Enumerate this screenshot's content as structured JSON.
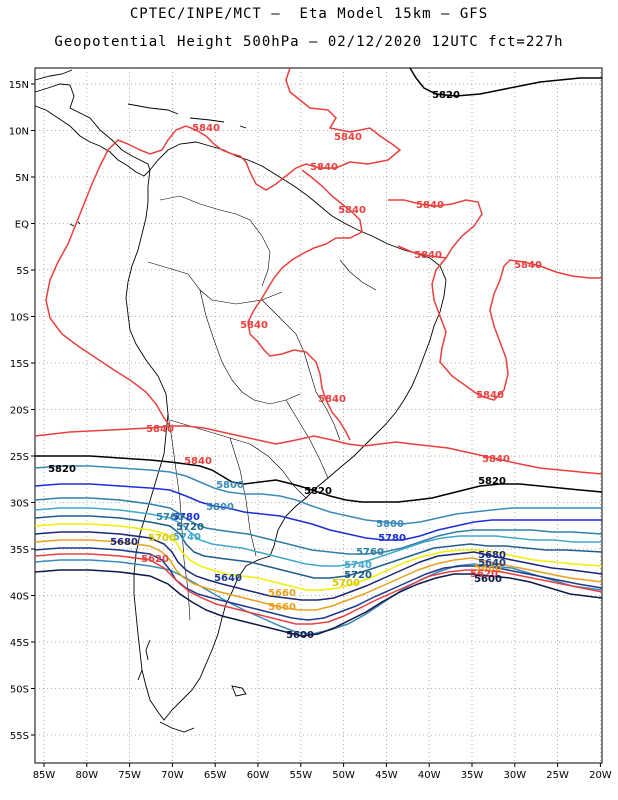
{
  "title_line1": "CPTEC/INPE/MCT –  Eta Model 15km – GFS",
  "title_line2": "Geopotential Height 500hPa – 02/12/2020 12UTC fct=227h",
  "lat_labels": [
    "15N",
    "10N",
    "5N",
    "EQ",
    "5S",
    "10S",
    "15S",
    "20S",
    "25S",
    "30S",
    "35S",
    "40S",
    "45S",
    "50S",
    "55S"
  ],
  "lon_labels": [
    "85W",
    "80W",
    "75W",
    "70W",
    "65W",
    "60W",
    "55W",
    "50W",
    "45W",
    "40W",
    "35W",
    "30W",
    "25W",
    "20W"
  ],
  "contour_levels": [
    {
      "value": 5840,
      "color": "#e8403e"
    },
    {
      "value": 5820,
      "color": "#000000"
    },
    {
      "value": 5800,
      "color": "#3a8ab8"
    },
    {
      "value": 5780,
      "color": "#1a2fd8"
    },
    {
      "value": 5760,
      "color": "#2f7fa8"
    },
    {
      "value": 5740,
      "color": "#40a8c8"
    },
    {
      "value": 5720,
      "color": "#1e5f8a"
    },
    {
      "value": 5700,
      "color": "#f0f000"
    },
    {
      "value": 5680,
      "color": "#1a2878"
    },
    {
      "value": 5660,
      "color": "#e8a020"
    },
    {
      "value": 5640,
      "color": "#1a3a8a"
    },
    {
      "value": 5620,
      "color": "#e84040"
    },
    {
      "value": 5600,
      "color": "#101848"
    }
  ],
  "contour_labels": [
    {
      "text": "5820",
      "color": "#000000"
    },
    {
      "text": "5840",
      "color": "#e8403e"
    },
    {
      "text": "5840",
      "color": "#e8403e"
    },
    {
      "text": "5840",
      "color": "#e8403e"
    },
    {
      "text": "5840",
      "color": "#e8403e"
    },
    {
      "text": "5840",
      "color": "#e8403e"
    },
    {
      "text": "5840",
      "color": "#e8403e"
    },
    {
      "text": "5840",
      "color": "#e8403e"
    },
    {
      "text": "5840",
      "color": "#e8403e"
    },
    {
      "text": "5840",
      "color": "#e8403e"
    },
    {
      "text": "5840",
      "color": "#e8403e"
    },
    {
      "text": "5840",
      "color": "#e8403e"
    },
    {
      "text": "5840",
      "color": "#e8403e"
    },
    {
      "text": "5840",
      "color": "#e8403e"
    },
    {
      "text": "5820",
      "color": "#000000"
    },
    {
      "text": "5820",
      "color": "#000000"
    },
    {
      "text": "5820",
      "color": "#000000"
    },
    {
      "text": "5800",
      "color": "#3a8ab8"
    },
    {
      "text": "5800",
      "color": "#3a8ab8"
    },
    {
      "text": "5800",
      "color": "#3a8ab8"
    },
    {
      "text": "5780",
      "color": "#1a2fd8"
    },
    {
      "text": "5780",
      "color": "#1a2fd8"
    },
    {
      "text": "5760",
      "color": "#2f7fa8"
    },
    {
      "text": "5760",
      "color": "#2f7fa8"
    },
    {
      "text": "5740",
      "color": "#40a8c8"
    },
    {
      "text": "5740",
      "color": "#40a8c8"
    },
    {
      "text": "5720",
      "color": "#1e5f8a"
    },
    {
      "text": "5720",
      "color": "#1e5f8a"
    },
    {
      "text": "5700",
      "color": "#d8c800"
    },
    {
      "text": "5700",
      "color": "#d8c800"
    },
    {
      "text": "5680",
      "color": "#1a2878"
    },
    {
      "text": "5680",
      "color": "#1a2878"
    },
    {
      "text": "5660",
      "color": "#e8a020"
    },
    {
      "text": "5660",
      "color": "#e8a020"
    },
    {
      "text": "5660",
      "color": "#e8a020"
    },
    {
      "text": "5640",
      "color": "#1a3a8a"
    },
    {
      "text": "5640",
      "color": "#1a3a8a"
    },
    {
      "text": "5620",
      "color": "#e84040"
    },
    {
      "text": "5620",
      "color": "#e84040"
    },
    {
      "text": "5600",
      "color": "#101848"
    },
    {
      "text": "5600",
      "color": "#101848"
    },
    {
      "text": "5600",
      "color": "#101848"
    }
  ]
}
